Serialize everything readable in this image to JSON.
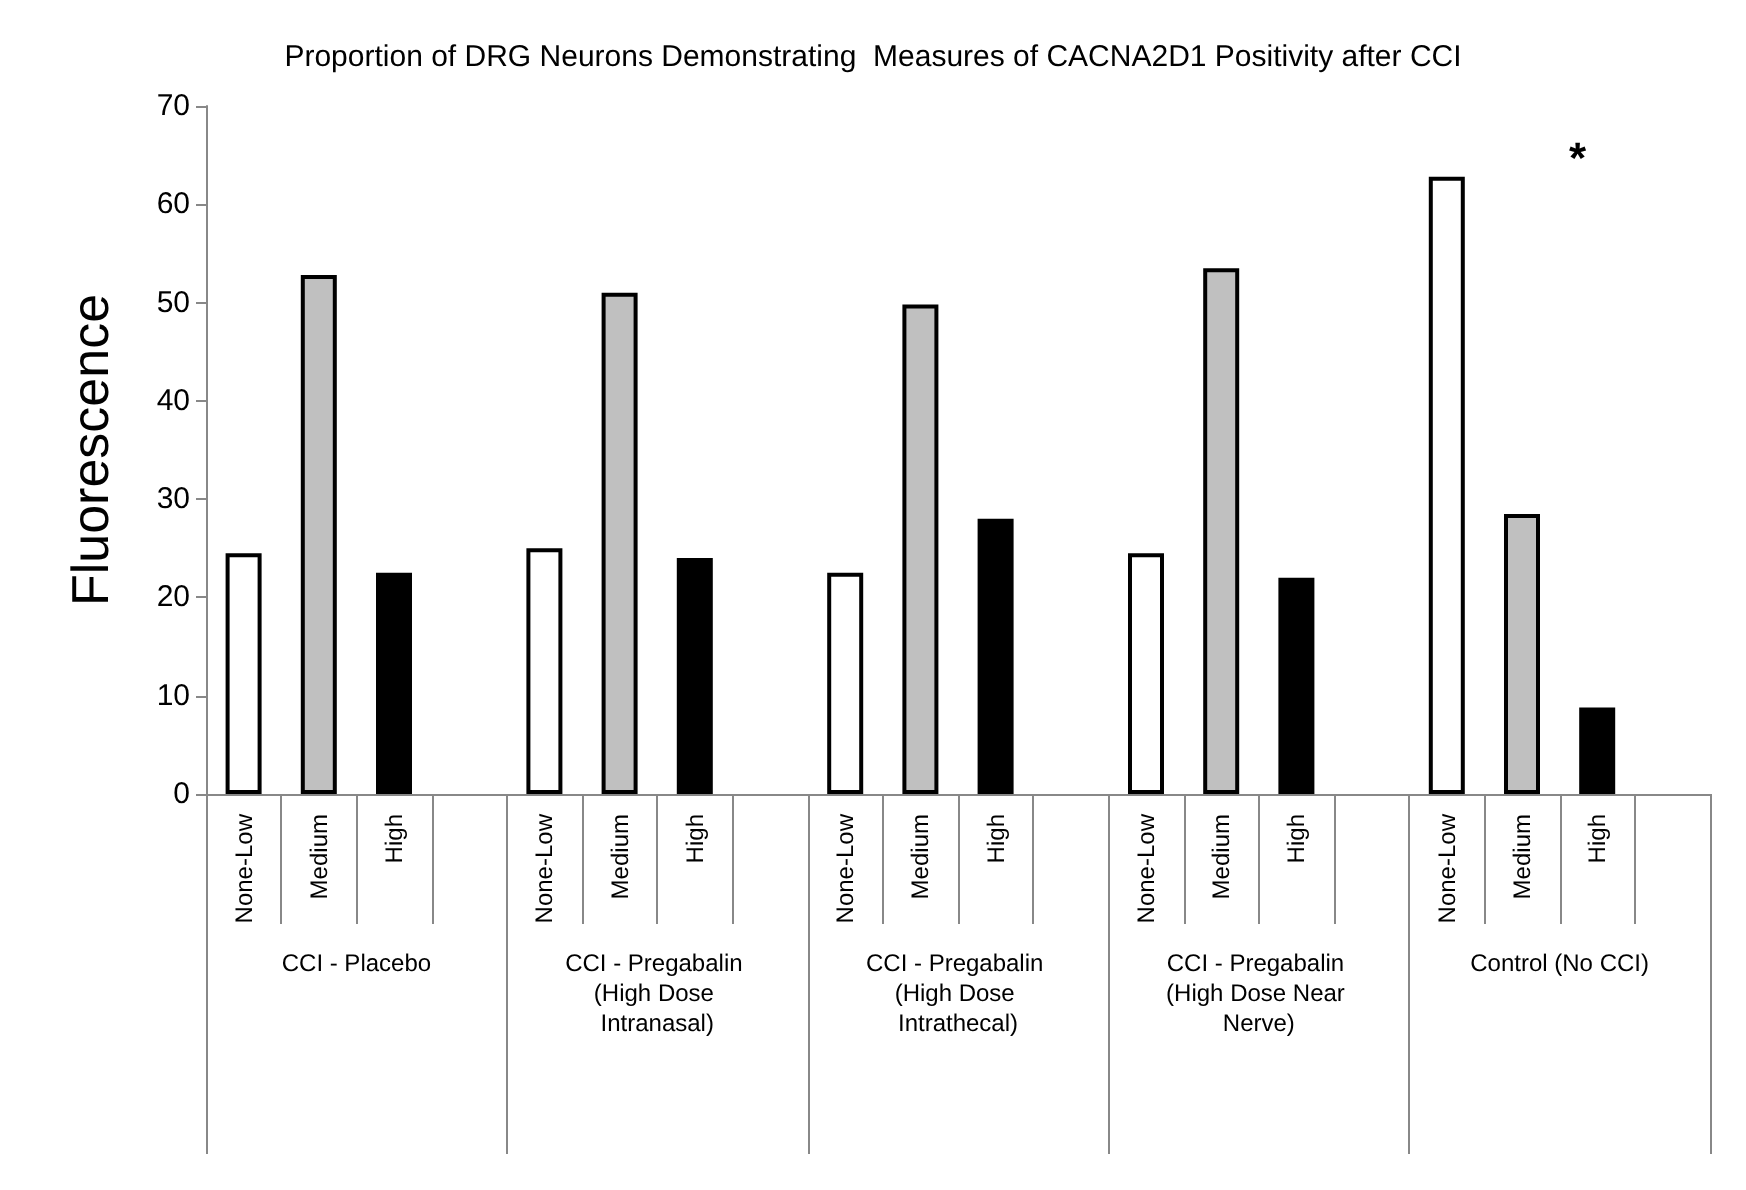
{
  "chart_data": {
    "type": "bar",
    "title": "Proportion of DRG Neurons Demonstrating  Measures of CACNA2D1 Positivity after CCI",
    "ylabel": "Fluorescence",
    "categories": [
      "CCI - Placebo",
      "CCI - Pregabalin (High Dose Intranasal)",
      "CCI - Pregabalin (High Dose Intrathecal)",
      "CCI - Pregabalin (High Dose Near Nerve)",
      "Control (No CCI)"
    ],
    "series": [
      {
        "name": "None-Low",
        "color": "#ffffff",
        "values": [
          24.5,
          25,
          22.5,
          24.5,
          62.8
        ]
      },
      {
        "name": "Medium",
        "color": "#c0c0c0",
        "values": [
          52.8,
          51,
          49.8,
          53.5,
          28.5
        ]
      },
      {
        "name": "High",
        "color": "#000000",
        "values": [
          22.5,
          24,
          28,
          22,
          8.8
        ]
      }
    ],
    "ylim": [
      0,
      70
    ],
    "yticks": [
      0,
      10,
      20,
      30,
      40,
      50,
      60,
      70
    ],
    "grid": false,
    "legend": false,
    "annotations": [
      "*"
    ]
  }
}
